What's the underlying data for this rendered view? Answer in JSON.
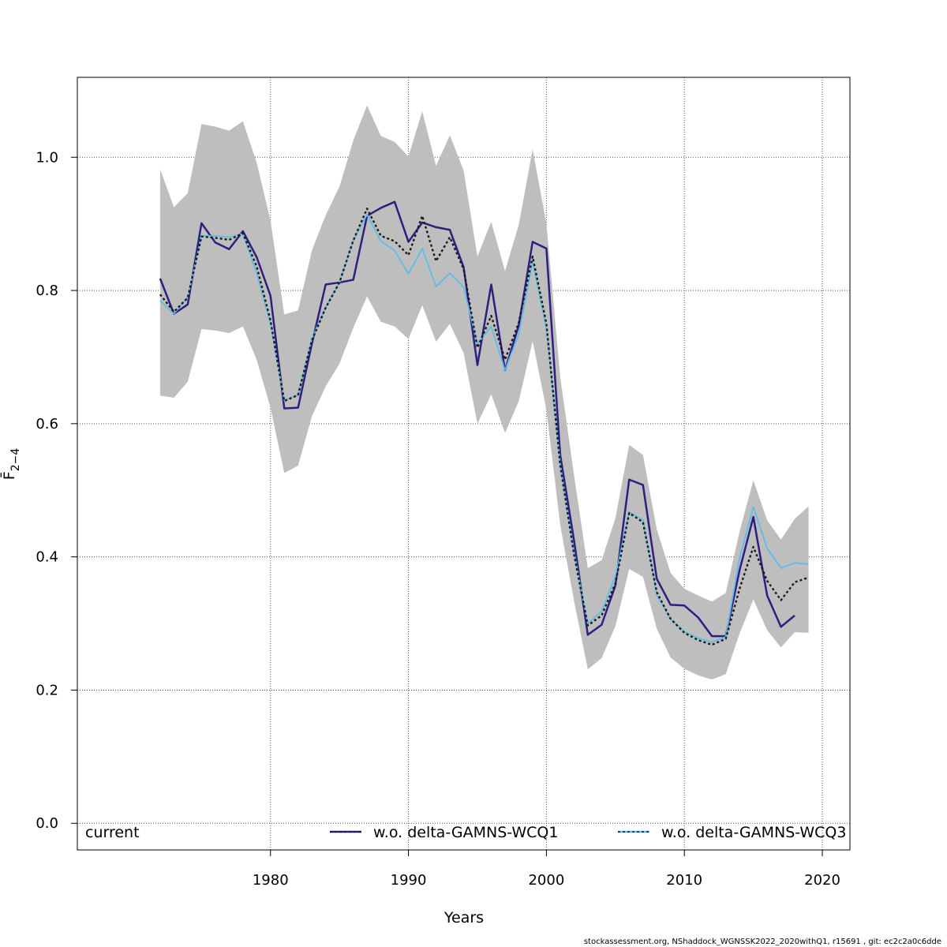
{
  "chart_data": {
    "type": "line",
    "xlabel": "Years",
    "ylabel": "F̄",
    "ylabel_sub": "2−4",
    "xlim": [
      1966,
      2022
    ],
    "ylim": [
      -0.04,
      1.12
    ],
    "xticks": [
      1980,
      1990,
      2000,
      2010,
      2020
    ],
    "yticks": [
      "0.0",
      "0.2",
      "0.4",
      "0.6",
      "0.8",
      "1.0"
    ],
    "grid": true,
    "legend_position": "bottom",
    "colors": {
      "band": "#bebebe",
      "current": "#1a1a1a",
      "wcq1": "#2e1e80",
      "wcq3": "#5bbde8",
      "grid": "#555555"
    },
    "series": [
      {
        "name": "current",
        "style": "dashed",
        "x": [
          1972,
          1973,
          1974,
          1975,
          1976,
          1977,
          1978,
          1979,
          1980,
          1981,
          1982,
          1983,
          1984,
          1985,
          1986,
          1987,
          1988,
          1989,
          1990,
          1991,
          1992,
          1993,
          1994,
          1995,
          1996,
          1997,
          1998,
          1999,
          2000,
          2001,
          2002,
          2003,
          2004,
          2005,
          2006,
          2007,
          2008,
          2009,
          2010,
          2011,
          2012,
          2013,
          2014,
          2015,
          2016,
          2017,
          2018,
          2019
        ],
        "values": [
          0.794,
          0.768,
          0.789,
          0.881,
          0.879,
          0.876,
          0.886,
          0.836,
          0.755,
          0.634,
          0.643,
          0.725,
          0.774,
          0.812,
          0.875,
          0.923,
          0.882,
          0.874,
          0.853,
          0.912,
          0.844,
          0.88,
          0.832,
          0.714,
          0.762,
          0.696,
          0.752,
          0.851,
          0.75,
          0.538,
          0.404,
          0.297,
          0.312,
          0.36,
          0.466,
          0.452,
          0.347,
          0.307,
          0.286,
          0.275,
          0.268,
          0.277,
          0.352,
          0.415,
          0.364,
          0.335,
          0.362,
          0.369
        ]
      },
      {
        "name": "w.o. delta-GAMNS-WCQ1",
        "style": "solid",
        "x": [
          1972,
          1973,
          1974,
          1975,
          1976,
          1977,
          1978,
          1979,
          1980,
          1981,
          1982,
          1983,
          1984,
          1985,
          1986,
          1987,
          1988,
          1989,
          1990,
          1991,
          1992,
          1993,
          1994,
          1995,
          1996,
          1997,
          1998,
          1999,
          2000,
          2001,
          2002,
          2003,
          2004,
          2005,
          2006,
          2007,
          2008,
          2009,
          2010,
          2011,
          2012,
          2013,
          2014,
          2015,
          2016,
          2017,
          2018
        ],
        "values": [
          0.818,
          0.765,
          0.779,
          0.901,
          0.872,
          0.862,
          0.889,
          0.85,
          0.792,
          0.623,
          0.624,
          0.72,
          0.809,
          0.812,
          0.816,
          0.912,
          0.924,
          0.933,
          0.873,
          0.902,
          0.895,
          0.891,
          0.835,
          0.688,
          0.809,
          0.68,
          0.748,
          0.873,
          0.863,
          0.553,
          0.425,
          0.283,
          0.298,
          0.357,
          0.516,
          0.508,
          0.367,
          0.328,
          0.327,
          0.309,
          0.281,
          0.281,
          0.38,
          0.46,
          0.342,
          0.295,
          0.312
        ]
      },
      {
        "name": "w.o. delta-GAMNS-WCQ3",
        "style": "solid",
        "x": [
          1972,
          1973,
          1974,
          1975,
          1976,
          1977,
          1978,
          1979,
          1980,
          1981,
          1982,
          1983,
          1984,
          1985,
          1986,
          1987,
          1988,
          1989,
          1990,
          1991,
          1992,
          1993,
          1994,
          1995,
          1996,
          1997,
          1998,
          1999,
          2000,
          2001,
          2002,
          2003,
          2004,
          2005,
          2006,
          2007,
          2008,
          2009,
          2010,
          2011,
          2012,
          2013,
          2014,
          2015,
          2016,
          2017,
          2018,
          2019
        ],
        "values": [
          0.785,
          0.765,
          0.79,
          0.882,
          0.882,
          0.88,
          0.885,
          0.826,
          0.75,
          0.635,
          0.643,
          0.728,
          0.775,
          0.812,
          0.875,
          0.914,
          0.874,
          0.86,
          0.825,
          0.863,
          0.806,
          0.826,
          0.805,
          0.72,
          0.746,
          0.68,
          0.735,
          0.843,
          0.743,
          0.54,
          0.407,
          0.3,
          0.318,
          0.371,
          0.467,
          0.456,
          0.343,
          0.307,
          0.288,
          0.278,
          0.272,
          0.28,
          0.398,
          0.475,
          0.413,
          0.383,
          0.391,
          0.389
        ]
      }
    ],
    "band": {
      "x": [
        1972,
        1973,
        1974,
        1975,
        1976,
        1977,
        1978,
        1979,
        1980,
        1981,
        1982,
        1983,
        1984,
        1985,
        1986,
        1987,
        1988,
        1989,
        1990,
        1991,
        1992,
        1993,
        1994,
        1995,
        1996,
        1997,
        1998,
        1999,
        2000,
        2001,
        2002,
        2003,
        2004,
        2005,
        2006,
        2007,
        2008,
        2009,
        2010,
        2011,
        2012,
        2013,
        2014,
        2015,
        2016,
        2017,
        2018,
        2019
      ],
      "upper": [
        0.982,
        0.925,
        0.946,
        1.05,
        1.046,
        1.04,
        1.054,
        0.992,
        0.905,
        0.764,
        0.77,
        0.86,
        0.913,
        0.956,
        1.025,
        1.078,
        1.032,
        1.023,
        1.001,
        1.069,
        0.987,
        1.033,
        0.98,
        0.851,
        0.903,
        0.829,
        0.899,
        1.012,
        0.9,
        0.67,
        0.523,
        0.383,
        0.395,
        0.458,
        0.568,
        0.553,
        0.441,
        0.376,
        0.352,
        0.342,
        0.333,
        0.346,
        0.438,
        0.515,
        0.455,
        0.426,
        0.457,
        0.476
      ],
      "lower": [
        0.642,
        0.639,
        0.663,
        0.742,
        0.74,
        0.736,
        0.746,
        0.696,
        0.624,
        0.526,
        0.537,
        0.611,
        0.656,
        0.69,
        0.744,
        0.791,
        0.753,
        0.746,
        0.727,
        0.778,
        0.723,
        0.75,
        0.706,
        0.6,
        0.644,
        0.586,
        0.634,
        0.724,
        0.621,
        0.448,
        0.334,
        0.231,
        0.248,
        0.296,
        0.382,
        0.37,
        0.292,
        0.249,
        0.232,
        0.222,
        0.216,
        0.224,
        0.285,
        0.336,
        0.29,
        0.264,
        0.287,
        0.286
      ]
    },
    "legend": [
      {
        "label": "current",
        "series": 0
      },
      {
        "label": "w.o. delta-GAMNS-WCQ1",
        "series": 1
      },
      {
        "label": "w.o. delta-GAMNS-WCQ3",
        "series": 2
      }
    ],
    "footer": "stockassessment.org, NShaddock_WGNSSK2022_2020withQ1, r15691 , git: ec2c2a0c6dde"
  }
}
